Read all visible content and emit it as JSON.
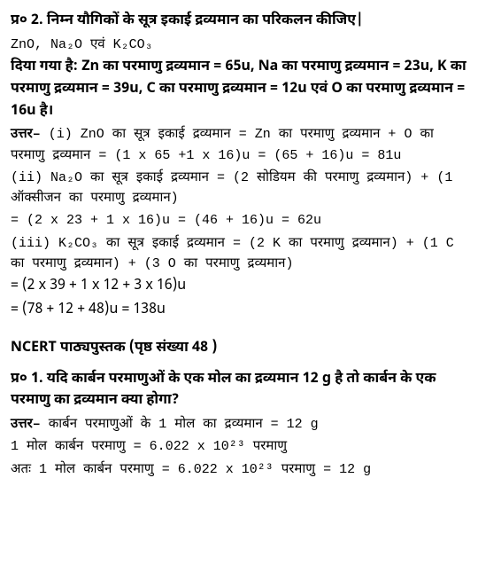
{
  "q2": {
    "title": "प्र० 2.  निम्न यौगिकों के सूत्र इकाई द्रव्यमान का परिकलन कीजिए|",
    "compounds": "ZnO, Na₂O एवं K₂CO₃",
    "given_label": "दिया गया है:",
    "given_rest": " Zn का परमाणु द्रव्यमान = 65u,  Na का परमाणु द्रव्यमान = 23u,  K का परमाणु द्रव्यमान = 39u,  C का परमाणु द्रव्यमान = 12u एवं O का परमाणु द्रव्यमान = 16u है।",
    "answer_label": "उत्तर– ",
    "i_a": "(i) ZnO का सूत्र इकाई द्रव्यमान = Zn का परमाणु द्रव्यमान + O का परमाणु द्रव्यमान = (1 x 65 +1 x 16)u = (65 + 16)u = 81u",
    "ii_a": "(ii) Na₂O का सूत्र इकाई द्रव्यमान = (2 सोडियम की परमाणु द्रव्यमान) + (1 ऑक्सीजन का परमाणु द्रव्यमान)",
    "ii_b": "= (2 x 23 + 1 x 16)u = (46 + 16)u = 62u",
    "iii_a": "(iii) K₂CO₃ का सूत्र इकाई द्रव्यमान = (2 K का परमाणु द्रव्यमान) + (1 C का परमाणु द्रव्यमान) + (3 O का परमाणु द्रव्यमान)",
    "iii_b": "= (2 x 39 + 1 x 12 + 3 x 16)u",
    "iii_c": "= (78 + 12 + 48)u = 138u"
  },
  "section": {
    "head": "NCERT पाठ्यपुस्तक (पृष्ठ संख्या 48 )"
  },
  "q1": {
    "title": "प्र० 1.  यदि कार्बन परमाणुओं के एक मोल का द्रव्यमान 12 g है तो कार्बन के एक परमाणु का द्रव्यमान क्या होगा?",
    "answer_label": "उत्तर– ",
    "line1": "कार्बन परमाणुओं के 1 मोल का द्रव्यमान = 12 g",
    "line2": "1 मोल कार्बन परमाणु = 6.022 x 10²³ परमाणु",
    "line3": "अतः 1 मोल कार्बन परमाणु = 6.022 x 10²³ परमाणु = 12 g"
  }
}
